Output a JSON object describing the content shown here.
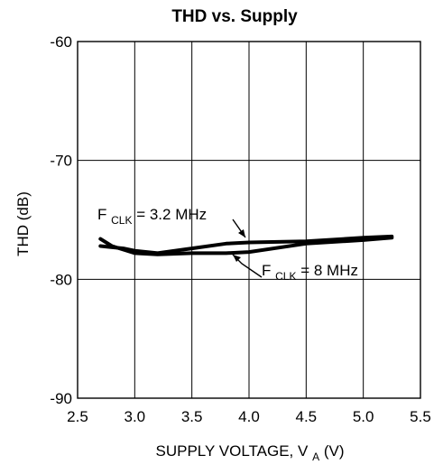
{
  "chart_data": {
    "type": "line",
    "title": "THD vs. Supply",
    "xlabel": {
      "main": "SUPPLY VOLTAGE, V",
      "sub": "A",
      "unit": " (V)"
    },
    "ylabel": "THD (dB)",
    "xlim": [
      2.5,
      5.5
    ],
    "ylim": [
      -90,
      -60
    ],
    "xticks": [
      "2.5",
      "3.0",
      "3.5",
      "4.0",
      "4.5",
      "5.0",
      "5.5"
    ],
    "yticks": [
      "-60",
      "-70",
      "-80",
      "-90"
    ],
    "grid": true,
    "series": [
      {
        "label": {
          "prefix": "F",
          "sub": "CLK",
          "suffix": " = 3.2 MHz"
        },
        "x": [
          2.7,
          2.9,
          3.0,
          3.2,
          3.5,
          3.8,
          4.0,
          4.5,
          5.0,
          5.25
        ],
        "y": [
          -77.2,
          -77.4,
          -77.6,
          -77.8,
          -77.4,
          -77.0,
          -76.9,
          -76.8,
          -76.5,
          -76.4
        ]
      },
      {
        "label": {
          "prefix": "F",
          "sub": "CLK",
          "suffix": " = 8 MHz"
        },
        "x": [
          2.7,
          2.8,
          3.0,
          3.2,
          3.5,
          3.8,
          4.0,
          4.5,
          5.0,
          5.25
        ],
        "y": [
          -76.6,
          -77.2,
          -77.8,
          -77.9,
          -77.8,
          -77.8,
          -77.7,
          -77.0,
          -76.7,
          -76.5
        ]
      }
    ]
  }
}
